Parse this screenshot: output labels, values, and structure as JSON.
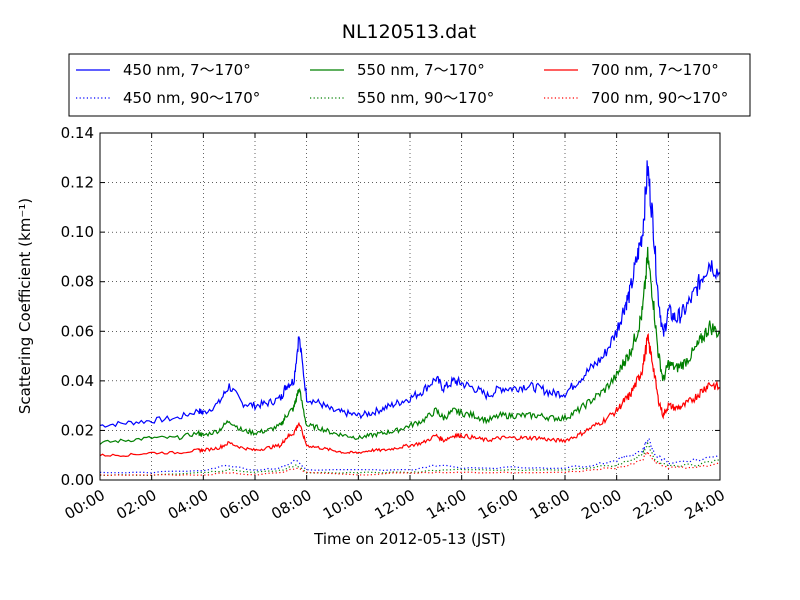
{
  "chart_data": {
    "type": "line",
    "title": "NL120513.dat",
    "xlabel": "Time on 2012-05-13 (JST)",
    "ylabel": "Scattering Coefficient (km⁻¹)",
    "xlim": [
      0,
      24
    ],
    "ylim": [
      0,
      0.14
    ],
    "xticks": [
      "00:00",
      "02:00",
      "04:00",
      "06:00",
      "08:00",
      "10:00",
      "12:00",
      "14:00",
      "16:00",
      "18:00",
      "20:00",
      "22:00",
      "24:00"
    ],
    "yticks": [
      "0.00",
      "0.02",
      "0.04",
      "0.06",
      "0.08",
      "0.10",
      "0.12",
      "0.14"
    ],
    "grid": true,
    "legend_position": "top (above plot)",
    "x_units": "hours since 00:00",
    "series": [
      {
        "name": "450 nm, 7～170°",
        "color": "#0000ff",
        "style": "solid",
        "x": [
          0,
          1,
          2,
          3,
          3.8,
          4,
          4.6,
          5,
          5.5,
          6,
          6.5,
          7,
          7.2,
          7.5,
          7.7,
          8,
          8.5,
          9,
          9.5,
          10,
          10.5,
          11,
          11.5,
          12,
          12.5,
          13,
          13.3,
          13.7,
          14,
          14.5,
          15,
          15.5,
          16,
          16.5,
          17,
          17.5,
          18,
          18.5,
          19,
          19.5,
          20,
          20.3,
          20.5,
          20.8,
          21,
          21.2,
          21.4,
          21.6,
          21.8,
          22,
          22.3,
          22.6,
          23,
          23.3,
          23.6,
          24
        ],
        "values": [
          0.022,
          0.023,
          0.024,
          0.025,
          0.028,
          0.027,
          0.031,
          0.038,
          0.031,
          0.03,
          0.031,
          0.033,
          0.038,
          0.04,
          0.058,
          0.033,
          0.031,
          0.028,
          0.027,
          0.026,
          0.027,
          0.029,
          0.031,
          0.033,
          0.036,
          0.041,
          0.037,
          0.04,
          0.039,
          0.037,
          0.034,
          0.037,
          0.037,
          0.038,
          0.037,
          0.035,
          0.035,
          0.04,
          0.045,
          0.05,
          0.06,
          0.07,
          0.075,
          0.09,
          0.1,
          0.126,
          0.105,
          0.075,
          0.058,
          0.068,
          0.065,
          0.068,
          0.075,
          0.082,
          0.088,
          0.083
        ]
      },
      {
        "name": "550 nm, 7～170°",
        "color": "#008000",
        "style": "solid",
        "x": [
          0,
          1,
          2,
          3,
          3.8,
          4,
          4.6,
          5,
          5.5,
          6,
          6.5,
          7,
          7.2,
          7.5,
          7.7,
          8,
          8.5,
          9,
          9.5,
          10,
          10.5,
          11,
          11.5,
          12,
          12.5,
          13,
          13.3,
          13.7,
          14,
          14.5,
          15,
          15.5,
          16,
          16.5,
          17,
          17.5,
          18,
          18.5,
          19,
          19.5,
          20,
          20.3,
          20.5,
          20.8,
          21,
          21.2,
          21.4,
          21.6,
          21.8,
          22,
          22.3,
          22.6,
          23,
          23.3,
          23.6,
          24
        ],
        "values": [
          0.015,
          0.016,
          0.017,
          0.017,
          0.019,
          0.018,
          0.02,
          0.024,
          0.02,
          0.019,
          0.02,
          0.022,
          0.026,
          0.029,
          0.037,
          0.022,
          0.021,
          0.019,
          0.018,
          0.017,
          0.018,
          0.019,
          0.02,
          0.022,
          0.024,
          0.028,
          0.025,
          0.028,
          0.027,
          0.026,
          0.024,
          0.026,
          0.026,
          0.026,
          0.026,
          0.025,
          0.025,
          0.028,
          0.032,
          0.036,
          0.042,
          0.048,
          0.051,
          0.06,
          0.068,
          0.09,
          0.074,
          0.052,
          0.04,
          0.047,
          0.045,
          0.047,
          0.052,
          0.057,
          0.062,
          0.059
        ]
      },
      {
        "name": "700 nm, 7～170°",
        "color": "#ff0000",
        "style": "solid",
        "x": [
          0,
          1,
          2,
          3,
          3.8,
          4,
          4.6,
          5,
          5.5,
          6,
          6.5,
          7,
          7.2,
          7.5,
          7.7,
          8,
          8.5,
          9,
          9.5,
          10,
          10.5,
          11,
          11.5,
          12,
          12.5,
          13,
          13.3,
          13.7,
          14,
          14.5,
          15,
          15.5,
          16,
          16.5,
          17,
          17.5,
          18,
          18.5,
          19,
          19.5,
          20,
          20.3,
          20.5,
          20.8,
          21,
          21.2,
          21.4,
          21.6,
          21.8,
          22,
          22.3,
          22.6,
          23,
          23.3,
          23.6,
          24
        ],
        "values": [
          0.01,
          0.01,
          0.011,
          0.011,
          0.012,
          0.012,
          0.013,
          0.015,
          0.013,
          0.012,
          0.013,
          0.014,
          0.017,
          0.019,
          0.023,
          0.014,
          0.013,
          0.012,
          0.011,
          0.011,
          0.012,
          0.012,
          0.013,
          0.014,
          0.015,
          0.018,
          0.016,
          0.018,
          0.018,
          0.017,
          0.016,
          0.017,
          0.017,
          0.017,
          0.017,
          0.016,
          0.016,
          0.018,
          0.021,
          0.024,
          0.028,
          0.032,
          0.034,
          0.04,
          0.045,
          0.057,
          0.047,
          0.033,
          0.026,
          0.03,
          0.029,
          0.03,
          0.033,
          0.036,
          0.039,
          0.037
        ]
      },
      {
        "name": "450 nm, 90～170°",
        "color": "#0000ff",
        "style": "dotted",
        "x": [
          0,
          2,
          4,
          5,
          6,
          7,
          7.6,
          8,
          10,
          12,
          13,
          14,
          16,
          18,
          19,
          20,
          20.5,
          21,
          21.2,
          21.5,
          22,
          23,
          24
        ],
        "values": [
          0.003,
          0.003,
          0.004,
          0.006,
          0.004,
          0.005,
          0.008,
          0.004,
          0.004,
          0.004,
          0.006,
          0.005,
          0.005,
          0.005,
          0.006,
          0.008,
          0.01,
          0.012,
          0.017,
          0.01,
          0.007,
          0.008,
          0.01
        ]
      },
      {
        "name": "550 nm, 90～170°",
        "color": "#008000",
        "style": "dotted",
        "x": [
          0,
          2,
          4,
          5,
          6,
          7,
          7.6,
          8,
          10,
          12,
          13,
          14,
          16,
          18,
          19,
          20,
          20.5,
          21,
          21.2,
          21.5,
          22,
          23,
          24
        ],
        "values": [
          0.002,
          0.002,
          0.003,
          0.004,
          0.003,
          0.004,
          0.006,
          0.003,
          0.003,
          0.003,
          0.004,
          0.004,
          0.004,
          0.004,
          0.005,
          0.006,
          0.008,
          0.01,
          0.014,
          0.008,
          0.006,
          0.006,
          0.008
        ]
      },
      {
        "name": "700 nm, 90～170°",
        "color": "#ff0000",
        "style": "dotted",
        "x": [
          0,
          2,
          4,
          5,
          6,
          7,
          7.6,
          8,
          10,
          12,
          13,
          14,
          16,
          18,
          19,
          20,
          20.5,
          21,
          21.2,
          21.5,
          22,
          23,
          24
        ],
        "values": [
          0.002,
          0.002,
          0.002,
          0.003,
          0.002,
          0.003,
          0.005,
          0.003,
          0.002,
          0.003,
          0.003,
          0.003,
          0.003,
          0.003,
          0.004,
          0.005,
          0.006,
          0.008,
          0.011,
          0.007,
          0.005,
          0.005,
          0.007
        ]
      }
    ]
  }
}
